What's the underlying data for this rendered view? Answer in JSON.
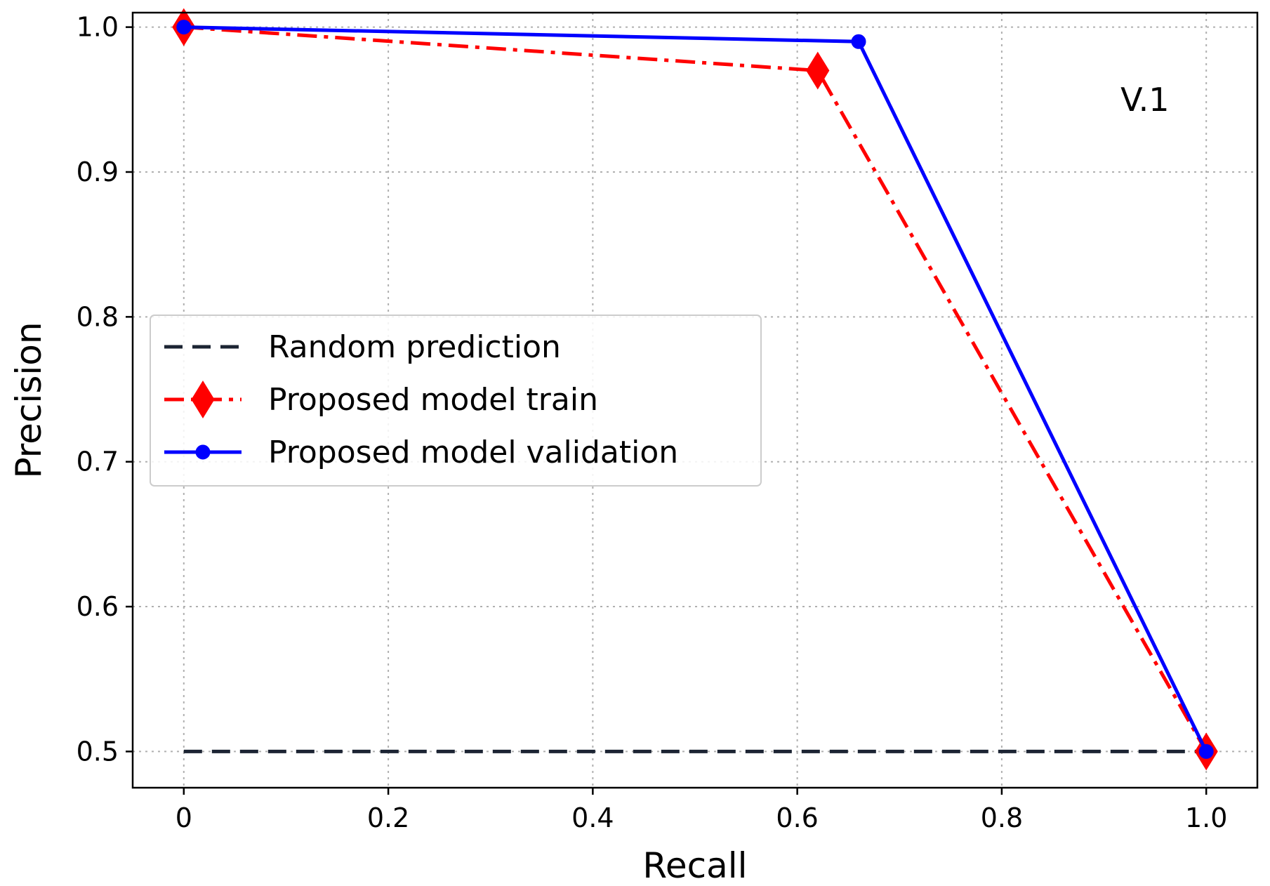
{
  "chart_data": {
    "type": "line",
    "title": "",
    "xlabel": "Recall",
    "ylabel": "Precision",
    "xlim": [
      -0.05,
      1.05
    ],
    "ylim": [
      0.475,
      1.01
    ],
    "grid": true,
    "legend_position": "center-left",
    "xticks": [
      {
        "value": 0,
        "label": "0"
      },
      {
        "value": 0.2,
        "label": "0.2"
      },
      {
        "value": 0.4,
        "label": "0.4"
      },
      {
        "value": 0.6,
        "label": "0.6"
      },
      {
        "value": 0.8,
        "label": "0.8"
      },
      {
        "value": 1.0,
        "label": "1.0"
      }
    ],
    "yticks": [
      {
        "value": 0.5,
        "label": "0.5"
      },
      {
        "value": 0.6,
        "label": "0.6"
      },
      {
        "value": 0.7,
        "label": "0.7"
      },
      {
        "value": 0.8,
        "label": "0.8"
      },
      {
        "value": 0.9,
        "label": "0.9"
      },
      {
        "value": 1.0,
        "label": "1.0"
      }
    ],
    "series": [
      {
        "name": "Random prediction",
        "color": "#1c2433",
        "style": "dashed",
        "marker": "none",
        "x": [
          0,
          1.0
        ],
        "y": [
          0.5,
          0.5
        ]
      },
      {
        "name": "Proposed model train",
        "color": "#ff0000",
        "style": "dashdot",
        "marker": "diamond",
        "x": [
          0,
          0.62,
          1.0
        ],
        "y": [
          1.0,
          0.97,
          0.5
        ]
      },
      {
        "name": "Proposed model validation",
        "color": "#0000ff",
        "style": "solid",
        "marker": "circle",
        "x": [
          0,
          0.66,
          1.0
        ],
        "y": [
          1.0,
          0.99,
          0.5
        ]
      }
    ],
    "annotations": [
      {
        "text": "V.1",
        "x": 0.94,
        "y": 0.95
      }
    ]
  }
}
